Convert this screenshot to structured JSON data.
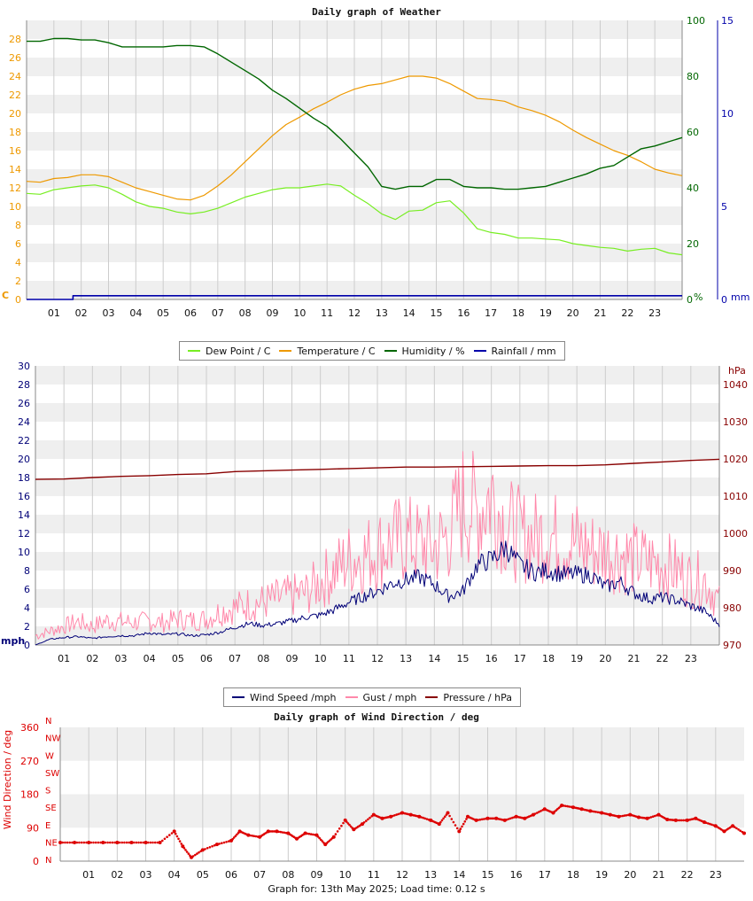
{
  "hours": [
    "01",
    "02",
    "03",
    "04",
    "05",
    "06",
    "07",
    "08",
    "09",
    "10",
    "11",
    "12",
    "13",
    "14",
    "15",
    "16",
    "17",
    "18",
    "19",
    "20",
    "21",
    "22",
    "23"
  ],
  "weather": {
    "title": "Daily graph of Weather",
    "left_unit": "C",
    "right_unit_humidity": "%",
    "right_unit_rain": "mm",
    "temp_ticks": [
      "0",
      "2",
      "4",
      "6",
      "8",
      "10",
      "12",
      "14",
      "16",
      "18",
      "20",
      "22",
      "24",
      "26",
      "28"
    ],
    "humidity_ticks": [
      "0",
      "20",
      "40",
      "60",
      "80",
      "100"
    ],
    "rain_ticks": [
      "0",
      "5",
      "10",
      "15"
    ],
    "legend": [
      {
        "label": "Dew Point / C",
        "color": "#77ee22"
      },
      {
        "label": "Temperature / C",
        "color": "#ee9900"
      },
      {
        "label": "Humidity / %",
        "color": "#006600"
      },
      {
        "label": "Rainfall / mm",
        "color": "#0000aa"
      }
    ]
  },
  "wind": {
    "left_unit": "mph",
    "right_unit": "hPa",
    "speed_ticks": [
      "0",
      "2",
      "4",
      "6",
      "8",
      "10",
      "12",
      "14",
      "16",
      "18",
      "20",
      "22",
      "24",
      "26",
      "28",
      "30"
    ],
    "pressure_ticks": [
      "970",
      "980",
      "990",
      "1000",
      "1010",
      "1020",
      "1030",
      "1040"
    ],
    "legend": [
      {
        "label": "Wind Speed /mph",
        "color": "#000077"
      },
      {
        "label": "Gust / mph",
        "color": "#ff88aa"
      },
      {
        "label": "Pressure / hPa",
        "color": "#880000"
      }
    ]
  },
  "direction": {
    "title": "Daily graph of Wind Direction / deg",
    "ylabel": "Wind Direction / deg",
    "deg_ticks": [
      "0",
      "90",
      "180",
      "270",
      "360"
    ],
    "compass": [
      "N",
      "NE",
      "E",
      "SE",
      "S",
      "SW",
      "W",
      "NW",
      "N"
    ]
  },
  "footer": "Graph for: 13th May 2025; Load time: 0.12 s",
  "chart_data": [
    {
      "type": "line",
      "title": "Daily graph of Weather",
      "x_unit": "hour",
      "xlim": [
        0,
        24
      ],
      "ylim_left": [
        0,
        30
      ],
      "ylim_humidity": [
        0,
        100
      ],
      "ylim_rain": [
        0,
        15
      ],
      "series": [
        {
          "name": "Temperature / C",
          "axis": "left",
          "color": "#ee9900",
          "x": [
            0,
            0.5,
            1,
            1.5,
            2,
            2.5,
            3,
            3.5,
            4,
            4.5,
            5,
            5.5,
            6,
            6.5,
            7,
            7.5,
            8,
            8.5,
            9,
            9.5,
            10,
            10.5,
            11,
            11.5,
            12,
            12.5,
            13,
            13.5,
            14,
            14.5,
            15,
            15.5,
            16,
            16.5,
            17,
            17.5,
            18,
            18.5,
            19,
            19.5,
            20,
            20.5,
            21,
            21.5,
            22,
            22.5,
            23,
            23.5,
            24
          ],
          "y": [
            12.7,
            12.6,
            13,
            13.1,
            13.4,
            13.4,
            13.2,
            12.6,
            12,
            11.6,
            11.2,
            10.8,
            10.7,
            11.2,
            12.2,
            13.4,
            14.8,
            16.2,
            17.6,
            18.8,
            19.6,
            20.5,
            21.2,
            22,
            22.6,
            23,
            23.2,
            23.6,
            24,
            24,
            23.8,
            23.2,
            22.4,
            21.6,
            21.5,
            21.3,
            20.7,
            20.3,
            19.8,
            19.1,
            18.2,
            17.4,
            16.7,
            16,
            15.5,
            14.8,
            14,
            13.6,
            13.3
          ]
        },
        {
          "name": "Dew Point / C",
          "axis": "left",
          "color": "#77ee22",
          "x": [
            0,
            0.5,
            1,
            1.5,
            2,
            2.5,
            3,
            3.5,
            4,
            4.5,
            5,
            5.5,
            6,
            6.5,
            7,
            7.5,
            8,
            8.5,
            9,
            9.5,
            10,
            10.5,
            11,
            11.5,
            12,
            12.5,
            13,
            13.5,
            14,
            14.5,
            15,
            15.5,
            16,
            16.5,
            17,
            17.5,
            18,
            18.5,
            19,
            19.5,
            20,
            20.5,
            21,
            21.5,
            22,
            22.5,
            23,
            23.5,
            24
          ],
          "y": [
            11.4,
            11.3,
            11.8,
            12,
            12.2,
            12.3,
            12,
            11.3,
            10.5,
            10,
            9.8,
            9.4,
            9.2,
            9.4,
            9.8,
            10.4,
            11,
            11.4,
            11.8,
            12,
            12,
            12.2,
            12.4,
            12.2,
            11.2,
            10.3,
            9.2,
            8.6,
            9.5,
            9.6,
            10.4,
            10.6,
            9.3,
            7.6,
            7.2,
            7,
            6.6,
            6.6,
            6.5,
            6.4,
            6,
            5.8,
            5.6,
            5.5,
            5.2,
            5.4,
            5.5,
            5,
            4.8
          ]
        },
        {
          "name": "Humidity / %",
          "axis": "right",
          "color": "#006600",
          "x": [
            0,
            0.5,
            1,
            1.5,
            2,
            2.5,
            3,
            3.5,
            4,
            4.5,
            5,
            5.5,
            6,
            6.5,
            7,
            7.5,
            8,
            8.5,
            9,
            9.5,
            10,
            10.5,
            11,
            11.5,
            12,
            12.5,
            13,
            13.5,
            14,
            14.5,
            15,
            15.5,
            16,
            16.5,
            17,
            17.5,
            18,
            18.5,
            19,
            19.5,
            20,
            20.5,
            21,
            21.5,
            22,
            22.5,
            23,
            23.5,
            24
          ],
          "y": [
            92.5,
            92.5,
            93.5,
            93.5,
            93,
            93,
            92,
            90.5,
            90.5,
            90.5,
            90.5,
            91,
            91,
            90.5,
            88,
            85,
            82,
            79,
            75,
            72,
            68.5,
            65,
            62,
            57.5,
            52.5,
            47.5,
            40.5,
            39.5,
            40.5,
            40.5,
            43,
            43,
            40.5,
            40,
            40,
            39.5,
            39.5,
            40,
            40.5,
            42,
            43.5,
            45,
            47,
            48,
            51,
            54,
            55,
            56.5,
            58
          ]
        },
        {
          "name": "Rainfall / mm",
          "axis": "rain",
          "color": "#0000aa",
          "x": [
            0,
            1.7,
            1.7,
            24
          ],
          "y": [
            0,
            0,
            0.2,
            0.2
          ]
        }
      ]
    },
    {
      "type": "line",
      "title": "",
      "x_unit": "hour",
      "xlim": [
        0,
        24
      ],
      "ylim_left": [
        0,
        30
      ],
      "ylim_pressure": [
        970,
        1045
      ],
      "series": [
        {
          "name": "Wind Speed /mph",
          "axis": "left",
          "color": "#000077",
          "x": [
            0,
            0.5,
            1,
            1.5,
            2,
            2.5,
            3,
            3.5,
            4,
            4.5,
            5,
            5.5,
            6,
            6.5,
            7,
            7.5,
            8,
            8.5,
            9,
            9.5,
            10,
            10.5,
            11,
            11.5,
            12,
            12.5,
            13,
            13.5,
            14,
            14.5,
            15,
            15.5,
            16,
            16.5,
            17,
            17.5,
            18,
            18.5,
            19,
            19.5,
            20,
            20.5,
            21,
            21.5,
            22,
            22.5,
            23,
            23.5,
            24
          ],
          "y": [
            0,
            0.6,
            0.8,
            0.9,
            0.7,
            0.9,
            1,
            1,
            1.3,
            1.1,
            1.2,
            1,
            1.1,
            1.4,
            1.9,
            2.3,
            2.1,
            2.3,
            2.6,
            3,
            3.2,
            3.8,
            4.6,
            5.2,
            5.8,
            6.6,
            7,
            7.3,
            6.5,
            5.2,
            5.8,
            8.6,
            9.2,
            10.5,
            8.6,
            7.8,
            8,
            7.6,
            7.6,
            7.5,
            6.2,
            6.8,
            5.6,
            5,
            5.1,
            4.8,
            4.2,
            3.6,
            2.2
          ]
        },
        {
          "name": "Gust / mph",
          "axis": "left",
          "color": "#ff88aa",
          "x": [
            0,
            0.5,
            1,
            1.5,
            2,
            2.5,
            3,
            3.5,
            4,
            4.5,
            5,
            5.5,
            6,
            6.5,
            7,
            7.5,
            8,
            8.5,
            9,
            9.5,
            10,
            10.5,
            11,
            11.5,
            12,
            12.5,
            13,
            13.5,
            14,
            14.5,
            15,
            15.5,
            16,
            16.5,
            17,
            17.5,
            18,
            18.5,
            19,
            19.5,
            20,
            20.5,
            21,
            21.5,
            22,
            22.5,
            23,
            23.5,
            24
          ],
          "y": [
            1,
            1.5,
            2,
            2.5,
            2,
            2.6,
            2.5,
            2.4,
            2.6,
            2.4,
            2.8,
            2.6,
            2.8,
            3.6,
            4,
            4.4,
            4.6,
            5,
            5.3,
            5.6,
            6.8,
            8,
            9.2,
            9.6,
            10.2,
            11,
            11.4,
            10.8,
            10.5,
            11.8,
            15.4,
            14.2,
            16.3,
            12.8,
            11.8,
            11.5,
            12,
            11,
            11,
            10.2,
            10,
            9.8,
            9.2,
            8.9,
            8.7,
            8,
            7,
            7,
            4.5
          ]
        },
        {
          "name": "Pressure / hPa",
          "axis": "right",
          "color": "#880000",
          "x": [
            0,
            1,
            2,
            3,
            4,
            5,
            6,
            7,
            8,
            9,
            10,
            11,
            12,
            13,
            14,
            15,
            16,
            17,
            18,
            19,
            20,
            21,
            22,
            23,
            24
          ],
          "y": [
            1014.5,
            1014.6,
            1015,
            1015.3,
            1015.5,
            1015.8,
            1016,
            1016.6,
            1016.8,
            1017,
            1017.2,
            1017.4,
            1017.6,
            1017.8,
            1017.8,
            1017.9,
            1018,
            1018.1,
            1018.2,
            1018.2,
            1018.4,
            1018.8,
            1019.2,
            1019.6,
            1019.9
          ]
        }
      ]
    },
    {
      "type": "scatter",
      "title": "Daily graph of Wind Direction / deg",
      "x_unit": "hour",
      "xlim": [
        0,
        24
      ],
      "ylim": [
        0,
        360
      ],
      "series": [
        {
          "name": "Wind Direction / deg",
          "color": "#dd0000",
          "x": [
            0,
            0.5,
            1,
            1.5,
            2,
            2.5,
            3,
            3.5,
            4,
            4.3,
            4.6,
            5,
            5.5,
            6,
            6.3,
            6.6,
            7,
            7.3,
            7.6,
            8,
            8.3,
            8.6,
            9,
            9.3,
            9.6,
            10,
            10.3,
            10.6,
            11,
            11.3,
            11.6,
            12,
            12.3,
            12.6,
            13,
            13.3,
            13.6,
            14,
            14.3,
            14.6,
            15,
            15.3,
            15.6,
            16,
            16.3,
            16.6,
            17,
            17.3,
            17.6,
            18,
            18.3,
            18.6,
            19,
            19.3,
            19.6,
            20,
            20.3,
            20.6,
            21,
            21.3,
            21.6,
            22,
            22.3,
            22.6,
            23,
            23.3,
            23.6,
            24
          ],
          "y": [
            50,
            50,
            50,
            50,
            50,
            50,
            50,
            50,
            80,
            40,
            10,
            30,
            45,
            55,
            80,
            70,
            65,
            80,
            80,
            75,
            60,
            75,
            70,
            45,
            65,
            110,
            85,
            100,
            125,
            115,
            120,
            130,
            125,
            120,
            110,
            100,
            130,
            80,
            120,
            110,
            115,
            115,
            110,
            120,
            115,
            125,
            140,
            130,
            150,
            145,
            140,
            135,
            130,
            125,
            120,
            125,
            118,
            115,
            125,
            112,
            110,
            110,
            115,
            105,
            95,
            80,
            95,
            75
          ]
        }
      ]
    }
  ]
}
